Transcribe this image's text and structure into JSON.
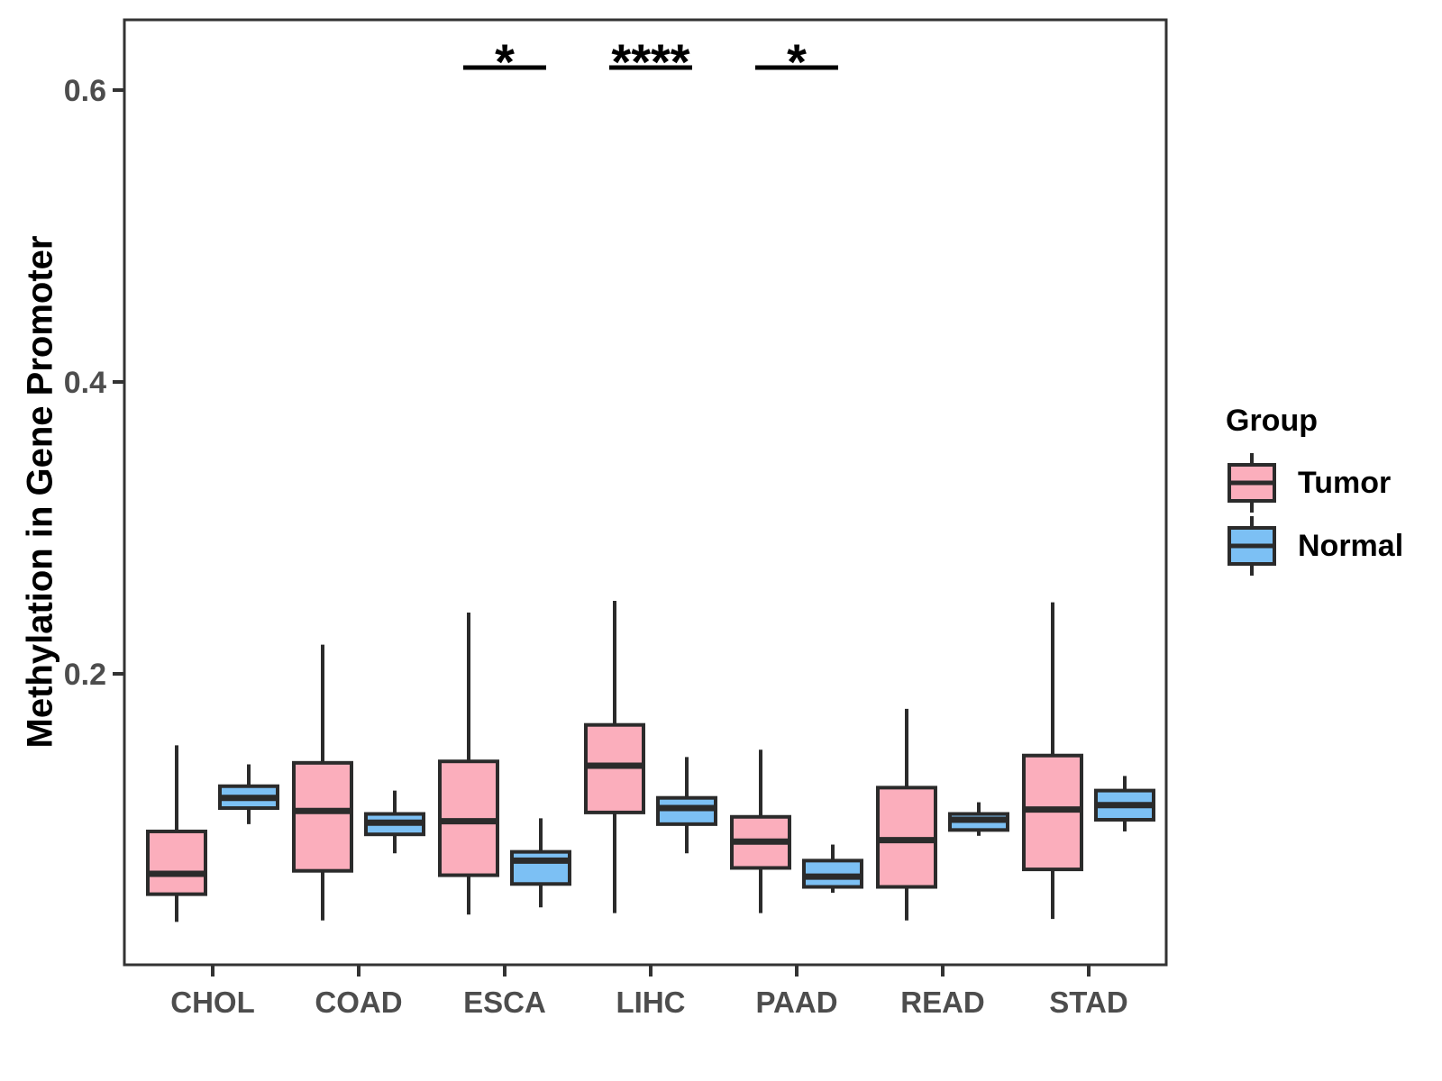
{
  "chart_data": {
    "type": "grouped_boxplot",
    "title": "",
    "xlabel": "",
    "ylabel": "Methylation in Gene Promoter",
    "categories": [
      "CHOL",
      "COAD",
      "ESCA",
      "LIHC",
      "PAAD",
      "READ",
      "STAD"
    ],
    "stats_format": [
      "whisker_min",
      "q1",
      "median",
      "q3",
      "whisker_max"
    ],
    "series": [
      {
        "name": "Tumor",
        "color": "#FBAEBC",
        "stats": [
          [
            0.03,
            0.049,
            0.063,
            0.092,
            0.151
          ],
          [
            0.031,
            0.065,
            0.106,
            0.139,
            0.22
          ],
          [
            0.035,
            0.062,
            0.099,
            0.14,
            0.242
          ],
          [
            0.036,
            0.105,
            0.137,
            0.165,
            0.25
          ],
          [
            0.036,
            0.067,
            0.085,
            0.102,
            0.148
          ],
          [
            0.031,
            0.054,
            0.086,
            0.122,
            0.176
          ],
          [
            0.032,
            0.066,
            0.107,
            0.144,
            0.249
          ]
        ]
      },
      {
        "name": "Normal",
        "color": "#7CC0F4",
        "stats": [
          [
            0.097,
            0.108,
            0.115,
            0.123,
            0.138
          ],
          [
            0.077,
            0.09,
            0.098,
            0.104,
            0.12
          ],
          [
            0.04,
            0.056,
            0.072,
            0.078,
            0.101
          ],
          [
            0.077,
            0.097,
            0.108,
            0.115,
            0.143
          ],
          [
            0.05,
            0.054,
            0.061,
            0.072,
            0.083
          ],
          [
            0.089,
            0.093,
            0.1,
            0.104,
            0.112
          ],
          [
            0.092,
            0.1,
            0.11,
            0.12,
            0.13
          ]
        ]
      }
    ],
    "y_ticks": [
      0.2,
      0.4,
      0.6
    ],
    "ylim": [
      0.0,
      0.648
    ],
    "grid": false,
    "legend": {
      "title": "Group",
      "position": "right"
    },
    "significance": [
      {
        "category": "ESCA",
        "label": "*"
      },
      {
        "category": "LIHC",
        "label": "****"
      },
      {
        "category": "PAAD",
        "label": "*"
      }
    ],
    "colors": {
      "box_outline": "#2B2B2B",
      "panel_border": "#333333",
      "axis_text": "#4D4D4D",
      "annotation": "#000000"
    }
  }
}
